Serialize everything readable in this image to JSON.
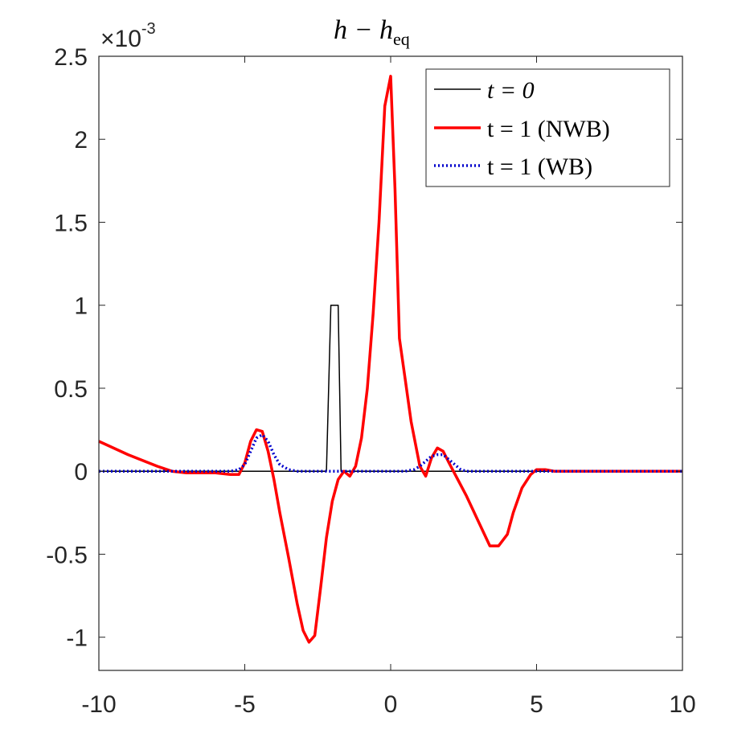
{
  "chart_data": {
    "type": "line",
    "title_main": "h − h",
    "title_sub": "eq",
    "y_multiplier_base": "×10",
    "y_multiplier_exp": "-3",
    "xlim": [
      -10,
      10
    ],
    "ylim": [
      -1.2,
      2.5
    ],
    "x_ticks": [
      -10,
      -5,
      0,
      5,
      10
    ],
    "x_tick_labels": [
      "-10",
      "-5",
      "0",
      "5",
      "10"
    ],
    "y_ticks": [
      -1,
      -0.5,
      0,
      0.5,
      1,
      1.5,
      2,
      2.5
    ],
    "y_tick_labels": [
      "-1",
      "-0.5",
      "0",
      "0.5",
      "1",
      "1.5",
      "2",
      "2.5"
    ],
    "legend_position": "top-right",
    "series": [
      {
        "name": "t = 0",
        "color": "#000000",
        "style": "solid",
        "x": [
          -10,
          -2.3,
          -2.2,
          -2.05,
          -1.95,
          -1.8,
          -1.7,
          10
        ],
        "y": [
          0,
          0,
          0,
          1.0,
          1.0,
          1.0,
          0,
          0
        ]
      },
      {
        "name": "t = 1 (NWB)",
        "color": "#ff0000",
        "style": "solid",
        "x": [
          -10,
          -9,
          -8,
          -7.5,
          -7,
          -6.5,
          -6,
          -5.5,
          -5.2,
          -5,
          -4.8,
          -4.6,
          -4.4,
          -4.2,
          -4,
          -3.8,
          -3.5,
          -3.2,
          -3,
          -2.8,
          -2.6,
          -2.4,
          -2.2,
          -2,
          -1.8,
          -1.6,
          -1.4,
          -1.2,
          -1,
          -0.8,
          -0.6,
          -0.4,
          -0.2,
          0,
          0.15,
          0.3,
          0.5,
          0.7,
          1,
          1.2,
          1.4,
          1.6,
          1.8,
          2.0,
          2.3,
          2.6,
          3,
          3.4,
          3.7,
          4,
          4.2,
          4.5,
          4.8,
          5,
          5.3,
          5.6,
          6,
          7,
          8,
          9,
          10
        ],
        "y": [
          0.18,
          0.1,
          0.03,
          0.0,
          -0.01,
          -0.01,
          -0.01,
          -0.02,
          -0.02,
          0.05,
          0.18,
          0.25,
          0.24,
          0.12,
          -0.05,
          -0.25,
          -0.52,
          -0.8,
          -0.96,
          -1.03,
          -0.99,
          -0.7,
          -0.4,
          -0.18,
          -0.05,
          0.0,
          -0.03,
          0.03,
          0.2,
          0.5,
          0.95,
          1.5,
          2.2,
          2.38,
          1.7,
          0.8,
          0.55,
          0.3,
          0.03,
          -0.03,
          0.08,
          0.14,
          0.12,
          0.05,
          -0.05,
          -0.15,
          -0.3,
          -0.45,
          -0.45,
          -0.38,
          -0.25,
          -0.1,
          -0.02,
          0.01,
          0.01,
          0.0,
          0.0,
          0.0,
          0.0,
          0.0,
          0.0
        ]
      },
      {
        "name": "t = 1 (WB)",
        "color": "#0000cc",
        "style": "dotted",
        "x": [
          -10,
          -6,
          -5.5,
          -5.2,
          -5,
          -4.8,
          -4.6,
          -4.4,
          -4.2,
          -4,
          -3.8,
          -3.5,
          -3.2,
          -3,
          -2,
          -1,
          0,
          0.5,
          0.8,
          1.0,
          1.2,
          1.4,
          1.6,
          1.8,
          2.0,
          2.2,
          2.4,
          2.6,
          3,
          5,
          10
        ],
        "y": [
          0,
          0,
          0.0,
          0.01,
          0.04,
          0.12,
          0.2,
          0.22,
          0.18,
          0.1,
          0.04,
          0.01,
          0.0,
          0.0,
          0.0,
          0.0,
          0.0,
          0.0,
          0.01,
          0.03,
          0.06,
          0.09,
          0.1,
          0.1,
          0.07,
          0.04,
          0.01,
          0.0,
          0.0,
          0.0,
          0.0
        ]
      }
    ],
    "legend_entries": [
      {
        "label": "t = 0"
      },
      {
        "label": "t = 1 (NWB)"
      },
      {
        "label": "t = 1 (WB)"
      }
    ]
  }
}
